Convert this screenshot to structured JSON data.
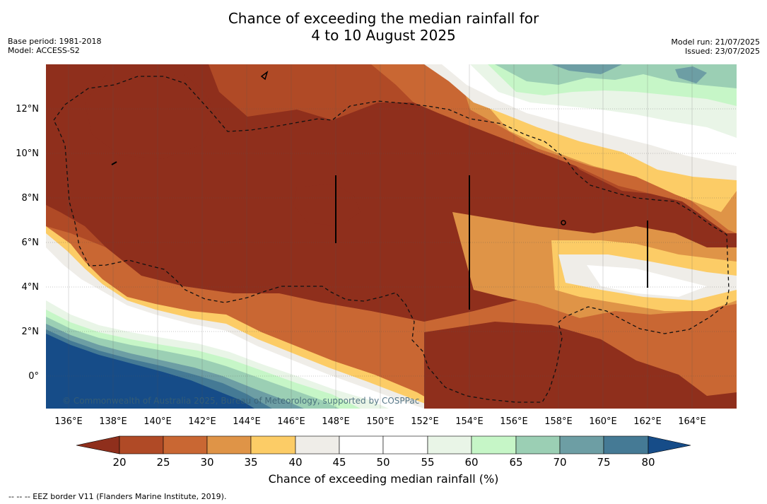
{
  "title": {
    "line1": "Chance of exceeding the median rainfall for",
    "line2": "4 to 10 August 2025"
  },
  "meta": {
    "base_period": "Base period: 1981-2018",
    "model": "Model: ACCESS-S2",
    "model_run": "Model run: 21/07/2025",
    "issued": "Issued: 23/07/2025"
  },
  "map": {
    "longitudes": [
      "136°E",
      "138°E",
      "140°E",
      "142°E",
      "144°E",
      "146°E",
      "148°E",
      "150°E",
      "152°E",
      "154°E",
      "156°E",
      "158°E",
      "160°E",
      "162°E",
      "164°E"
    ],
    "latitudes": [
      "12°N",
      "10°N",
      "8°N",
      "6°N",
      "4°N",
      "2°N",
      "0°"
    ],
    "copyright": "© Commonwealth of Australia 2025, Bureau of Meteorology, supported by COSPPac"
  },
  "colorbar": {
    "title": "Chance of exceeding median rainfall (%)",
    "ticks": [
      "20",
      "25",
      "30",
      "35",
      "40",
      "45",
      "50",
      "55",
      "60",
      "65",
      "70",
      "75",
      "80"
    ],
    "colors": [
      "#8f2f1c",
      "#b04a26",
      "#c96733",
      "#df9447",
      "#fccc66",
      "#efede8",
      "#ffffff",
      "#ffffff",
      "#e9f5e7",
      "#c6f6c7",
      "#9bcfb4",
      "#6d9ea4",
      "#457a95",
      "#164c88"
    ]
  },
  "footnote": "--  --  -- EEZ border V11 (Flanders Marine Institute, 2019)."
}
